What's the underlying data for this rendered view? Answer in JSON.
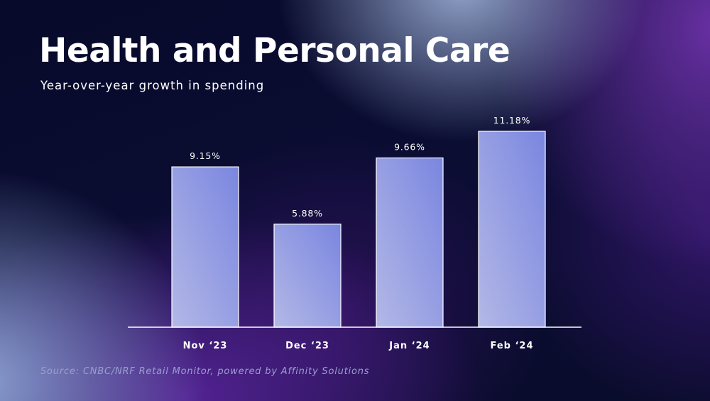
{
  "chart_data": {
    "type": "bar",
    "title": "Health and Personal Care",
    "subtitle": "Year-over-year growth in spending",
    "categories": [
      "Nov ‘23",
      "Dec ‘23",
      "Jan ‘24",
      "Feb ‘24"
    ],
    "values": [
      9.15,
      5.88,
      9.66,
      11.18
    ],
    "value_labels": [
      "9.15%",
      "5.88%",
      "9.66%",
      "11.18%"
    ],
    "xlabel": "",
    "ylabel": "",
    "ylim": [
      0,
      12
    ],
    "grid": false,
    "legend": "none",
    "source": "Source: CNBC/NRF Retail Monitor, powered by Affinity Solutions"
  },
  "colors": {
    "bar_top": "#7a86e0",
    "bar_bottom": "#b3b8e6",
    "axis": "#ffffff"
  }
}
